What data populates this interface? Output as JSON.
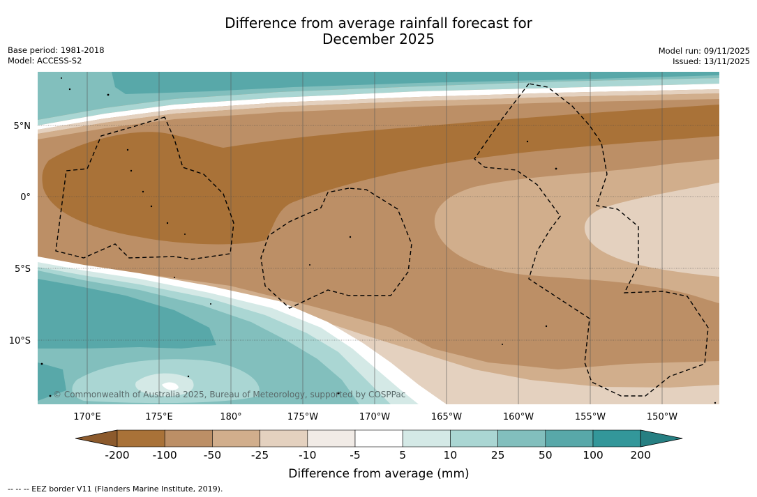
{
  "title": {
    "line1": "Difference from average rainfall forecast for",
    "line2": "December 2025"
  },
  "meta_left": {
    "base_period": "Base period: 1981-2018",
    "model": "Model: ACCESS-S2"
  },
  "meta_right": {
    "model_run": "Model run: 09/11/2025",
    "issued": "Issued: 13/11/2025"
  },
  "map": {
    "lat_labels": [
      "5°N",
      "0°",
      "5°S",
      "10°S"
    ],
    "lon_labels": [
      "170°E",
      "175°E",
      "180°",
      "175°W",
      "170°W",
      "165°W",
      "160°W",
      "155°W",
      "150°W"
    ],
    "copyright": "© Commonwealth of Australia 2025, Bureau of Meteorology, supported by COSPPac"
  },
  "colorbar": {
    "title": "Difference from average (mm)",
    "labels": [
      "-200",
      "-100",
      "-50",
      "-25",
      "-10",
      "-5",
      "5",
      "10",
      "25",
      "50",
      "100",
      "200"
    ],
    "colors": [
      "#8c5a2c",
      "#a97238",
      "#bc8f66",
      "#d1ae8c",
      "#e4d1bf",
      "#f1ebe6",
      "#ffffff",
      "#d4e9e6",
      "#aad6d3",
      "#82bfbd",
      "#58a8a9",
      "#33979a",
      "#267f82"
    ]
  },
  "footer": "--  --  -- EEZ border V11 (Flanders Marine Institute, 2019)."
}
